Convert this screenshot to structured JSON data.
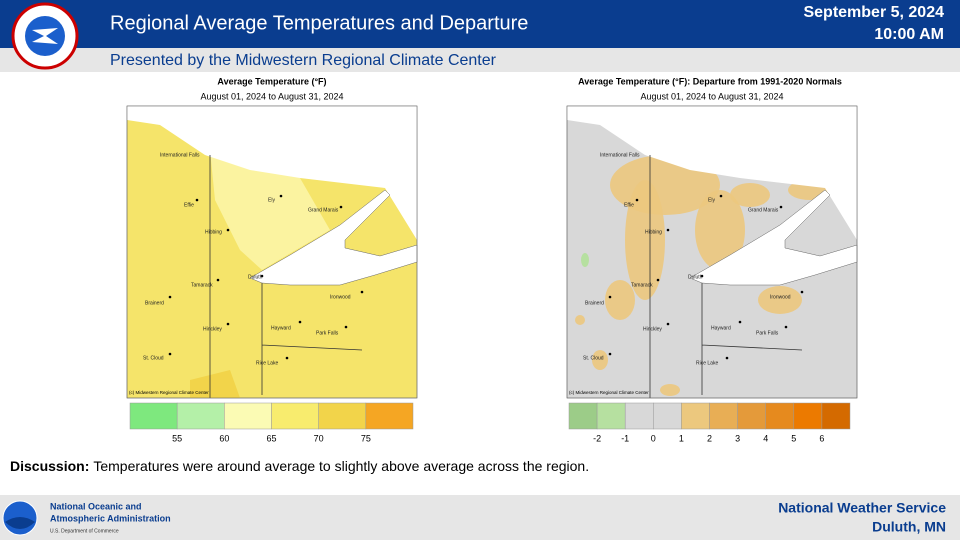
{
  "header": {
    "title": "Regional Average Temperatures and Departure",
    "subtitle": "Presented by the Midwestern Regional Climate Center",
    "date": "September 5, 2024",
    "time": "10:00 AM"
  },
  "maps": [
    {
      "title": "Average Temperature (°F)",
      "period": "August 01, 2024 to August 31, 2024",
      "credit": "(c) Midwestern Regional Climate Center",
      "legend": {
        "colors": [
          "#7ee87e",
          "#b4f0a8",
          "#fbfbb4",
          "#f8ec6e",
          "#f2d44a",
          "#f5a623"
        ],
        "ticks": [
          55,
          60,
          65,
          70,
          75
        ]
      }
    },
    {
      "title": "Average Temperature (°F): Departure from 1991-2020 Normals",
      "period": "August 01, 2024 to August 31, 2024",
      "credit": "(c) Midwestern Regional Climate Center",
      "legend": {
        "colors": [
          "#9ccc88",
          "#b6e0a0",
          "#d8d8d8",
          "#d8d8d8",
          "#ecc87e",
          "#e8ae55",
          "#e49a3a",
          "#e68a1e",
          "#ec7a00",
          "#d46a00"
        ],
        "ticks": [
          -2,
          -1,
          0,
          1,
          2,
          3,
          4,
          5,
          6
        ]
      }
    }
  ],
  "cities": [
    "International Falls",
    "Effie",
    "Hibbing",
    "Ely",
    "Grand Marais",
    "Duluth",
    "Tamarack",
    "Brainerd",
    "Ironwood",
    "Hinckley",
    "Hayward",
    "Park Falls",
    "St. Cloud",
    "Rice Lake"
  ],
  "discussion": {
    "label": "Discussion:",
    "text": "Temperatures were around average to slightly above average across the region."
  },
  "footer": {
    "agency_line1": "National Oceanic and",
    "agency_line2": "Atmospheric Administration",
    "department": "U.S. Department of Commerce",
    "office_line1": "National  Weather Service",
    "office_line2": "Duluth,  MN"
  }
}
